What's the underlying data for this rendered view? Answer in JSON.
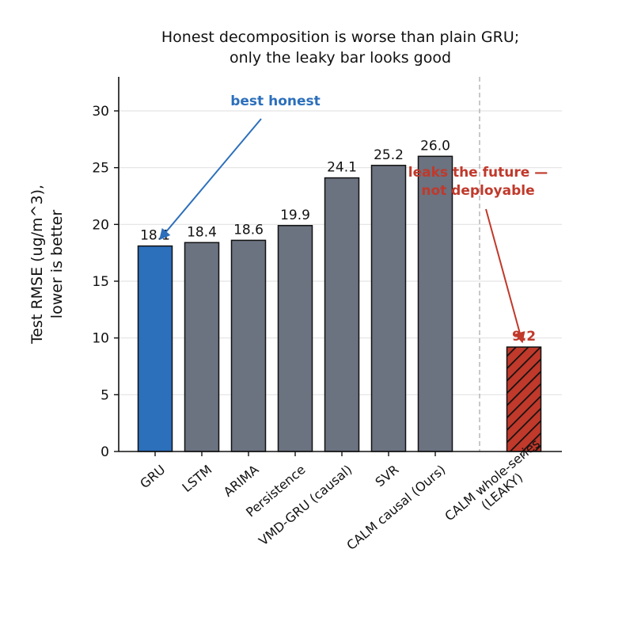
{
  "chart_data": {
    "type": "bar",
    "title": [
      "Honest decomposition is worse than plain GRU;",
      "only the leaky bar looks good"
    ],
    "xlabel": "",
    "ylabel": [
      "Test RMSE (ug/m^3),",
      "lower is better"
    ],
    "ylim": [
      0,
      33
    ],
    "yticks": [
      0,
      5,
      10,
      15,
      20,
      25,
      30
    ],
    "grid": "horizontal",
    "categories": [
      "GRU",
      "LSTM",
      "ARIMA",
      "Persistence",
      "VMD-GRU (causal)",
      "SVR",
      "CALM causal (Ours)",
      "CALM whole-series\n(LEAKY)"
    ],
    "category_labels": [
      [
        "GRU"
      ],
      [
        "LSTM"
      ],
      [
        "ARIMA"
      ],
      [
        "Persistence"
      ],
      [
        "VMD-GRU (causal)"
      ],
      [
        "SVR"
      ],
      [
        "CALM causal (Ours)"
      ],
      [
        "CALM whole-series",
        "(LEAKY)"
      ]
    ],
    "values": [
      18.1,
      18.4,
      18.6,
      19.9,
      24.1,
      25.2,
      26.0,
      9.2
    ],
    "value_labels": [
      "18.1",
      "18.4",
      "18.6",
      "19.9",
      "24.1",
      "25.2",
      "26.0",
      "9.2"
    ],
    "bar_colors": [
      "#2c6fbb",
      "#6b7280",
      "#6b7280",
      "#6b7280",
      "#6b7280",
      "#6b7280",
      "#6b7280",
      "#c0392b"
    ],
    "hatched": [
      false,
      false,
      false,
      false,
      false,
      false,
      false,
      true
    ],
    "value_label_colors": [
      "#111111",
      "#111111",
      "#111111",
      "#111111",
      "#111111",
      "#111111",
      "#111111",
      "#c0392b"
    ],
    "separator_after_index": 6,
    "annotations": [
      {
        "text": [
          "best honest"
        ],
        "color": "#2c6fbb",
        "target_index": 0
      },
      {
        "text": [
          "leaks the future —",
          "not deployable"
        ],
        "color": "#c0392b",
        "target_index": 7
      }
    ]
  }
}
